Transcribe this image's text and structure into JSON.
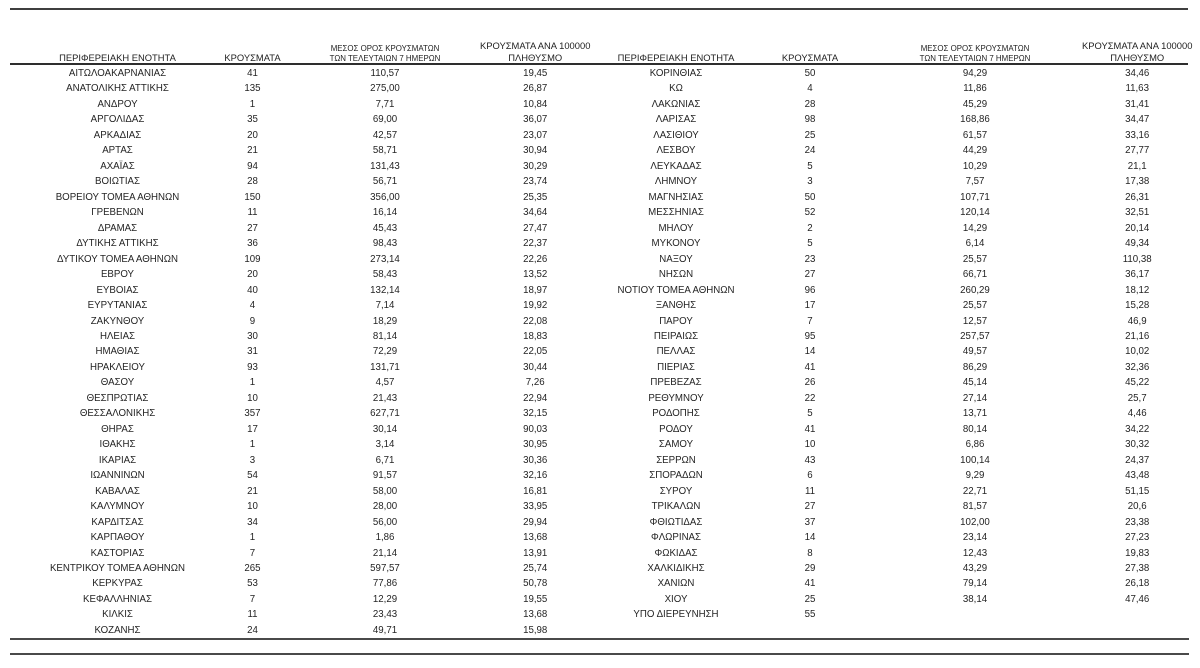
{
  "document": {
    "headers": {
      "region": "ΠΕΡΙΦΕΡΕΙΑΚΗ ΕΝΟΤΗΤΑ",
      "cases": "ΚΡΟΥΣΜΑΤΑ",
      "avg7_line1": "ΜΕΣΟΣ ΟΡΟΣ ΚΡΟΥΣΜΑΤΩΝ",
      "avg7_line2": "ΤΩΝ ΤΕΛΕΥΤΑΙΩΝ 7 ΗΜΕΡΩΝ",
      "per100k_line1": "ΚΡΟΥΣΜΑΤΑ ΑΝΑ 100000",
      "per100k_line2": "ΠΛΗΘΥΣΜΟ"
    },
    "left_table_rows": [
      [
        "ΑΙΤΩΛΟΑΚΑΡΝΑΝΙΑΣ",
        "41",
        "110,57",
        "19,45"
      ],
      [
        "ΑΝΑΤΟΛΙΚΗΣ ΑΤΤΙΚΗΣ",
        "135",
        "275,00",
        "26,87"
      ],
      [
        "ΑΝΔΡΟΥ",
        "1",
        "7,71",
        "10,84"
      ],
      [
        "ΑΡΓΟΛΙΔΑΣ",
        "35",
        "69,00",
        "36,07"
      ],
      [
        "ΑΡΚΑΔΙΑΣ",
        "20",
        "42,57",
        "23,07"
      ],
      [
        "ΑΡΤΑΣ",
        "21",
        "58,71",
        "30,94"
      ],
      [
        "ΑΧΑΪΑΣ",
        "94",
        "131,43",
        "30,29"
      ],
      [
        "ΒΟΙΩΤΙΑΣ",
        "28",
        "56,71",
        "23,74"
      ],
      [
        "ΒΟΡΕΙΟΥ ΤΟΜΕΑ ΑΘΗΝΩΝ",
        "150",
        "356,00",
        "25,35"
      ],
      [
        "ΓΡΕΒΕΝΩΝ",
        "11",
        "16,14",
        "34,64"
      ],
      [
        "ΔΡΑΜΑΣ",
        "27",
        "45,43",
        "27,47"
      ],
      [
        "ΔΥΤΙΚΗΣ ΑΤΤΙΚΗΣ",
        "36",
        "98,43",
        "22,37"
      ],
      [
        "ΔΥΤΙΚΟΥ ΤΟΜΕΑ ΑΘΗΝΩΝ",
        "109",
        "273,14",
        "22,26"
      ],
      [
        "ΕΒΡΟΥ",
        "20",
        "58,43",
        "13,52"
      ],
      [
        "ΕΥΒΟΙΑΣ",
        "40",
        "132,14",
        "18,97"
      ],
      [
        "ΕΥΡΥΤΑΝΙΑΣ",
        "4",
        "7,14",
        "19,92"
      ],
      [
        "ΖΑΚΥΝΘΟΥ",
        "9",
        "18,29",
        "22,08"
      ],
      [
        "ΗΛΕΙΑΣ",
        "30",
        "81,14",
        "18,83"
      ],
      [
        "ΗΜΑΘΙΑΣ",
        "31",
        "72,29",
        "22,05"
      ],
      [
        "ΗΡΑΚΛΕΙΟΥ",
        "93",
        "131,71",
        "30,44"
      ],
      [
        "ΘΑΣΟΥ",
        "1",
        "4,57",
        "7,26"
      ],
      [
        "ΘΕΣΠΡΩΤΙΑΣ",
        "10",
        "21,43",
        "22,94"
      ],
      [
        "ΘΕΣΣΑΛΟΝΙΚΗΣ",
        "357",
        "627,71",
        "32,15"
      ],
      [
        "ΘΗΡΑΣ",
        "17",
        "30,14",
        "90,03"
      ],
      [
        "ΙΘΑΚΗΣ",
        "1",
        "3,14",
        "30,95"
      ],
      [
        "ΙΚΑΡΙΑΣ",
        "3",
        "6,71",
        "30,36"
      ],
      [
        "ΙΩΑΝΝΙΝΩΝ",
        "54",
        "91,57",
        "32,16"
      ],
      [
        "ΚΑΒΑΛΑΣ",
        "21",
        "58,00",
        "16,81"
      ],
      [
        "ΚΑΛΥΜΝΟΥ",
        "10",
        "28,00",
        "33,95"
      ],
      [
        "ΚΑΡΔΙΤΣΑΣ",
        "34",
        "56,00",
        "29,94"
      ],
      [
        "ΚΑΡΠΑΘΟΥ",
        "1",
        "1,86",
        "13,68"
      ],
      [
        "ΚΑΣΤΟΡΙΑΣ",
        "7",
        "21,14",
        "13,91"
      ],
      [
        "ΚΕΝΤΡΙΚΟΥ ΤΟΜΕΑ ΑΘΗΝΩΝ",
        "265",
        "597,57",
        "25,74"
      ],
      [
        "ΚΕΡΚΥΡΑΣ",
        "53",
        "77,86",
        "50,78"
      ],
      [
        "ΚΕΦΑΛΛΗΝΙΑΣ",
        "7",
        "12,29",
        "19,55"
      ],
      [
        "ΚΙΛΚΙΣ",
        "11",
        "23,43",
        "13,68"
      ],
      [
        "ΚΟΖΑΝΗΣ",
        "24",
        "49,71",
        "15,98"
      ]
    ],
    "right_table_rows": [
      [
        "ΚΟΡΙΝΘΙΑΣ",
        "50",
        "94,29",
        "34,46"
      ],
      [
        "ΚΩ",
        "4",
        "11,86",
        "11,63"
      ],
      [
        "ΛΑΚΩΝΙΑΣ",
        "28",
        "45,29",
        "31,41"
      ],
      [
        "ΛΑΡΙΣΑΣ",
        "98",
        "168,86",
        "34,47"
      ],
      [
        "ΛΑΣΙΘΙΟΥ",
        "25",
        "61,57",
        "33,16"
      ],
      [
        "ΛΕΣΒΟΥ",
        "24",
        "44,29",
        "27,77"
      ],
      [
        "ΛΕΥΚΑΔΑΣ",
        "5",
        "10,29",
        "21,1"
      ],
      [
        "ΛΗΜΝΟΥ",
        "3",
        "7,57",
        "17,38"
      ],
      [
        "ΜΑΓΝΗΣΙΑΣ",
        "50",
        "107,71",
        "26,31"
      ],
      [
        "ΜΕΣΣΗΝΙΑΣ",
        "52",
        "120,14",
        "32,51"
      ],
      [
        "ΜΗΛΟΥ",
        "2",
        "14,29",
        "20,14"
      ],
      [
        "ΜΥΚΟΝΟΥ",
        "5",
        "6,14",
        "49,34"
      ],
      [
        "ΝΑΞΟΥ",
        "23",
        "25,57",
        "110,38"
      ],
      [
        "ΝΗΣΩΝ",
        "27",
        "66,71",
        "36,17"
      ],
      [
        "ΝΟΤΙΟΥ ΤΟΜΕΑ ΑΘΗΝΩΝ",
        "96",
        "260,29",
        "18,12"
      ],
      [
        "ΞΑΝΘΗΣ",
        "17",
        "25,57",
        "15,28"
      ],
      [
        "ΠΑΡΟΥ",
        "7",
        "12,57",
        "46,9"
      ],
      [
        "ΠΕΙΡΑΙΩΣ",
        "95",
        "257,57",
        "21,16"
      ],
      [
        "ΠΕΛΛΑΣ",
        "14",
        "49,57",
        "10,02"
      ],
      [
        "ΠΙΕΡΙΑΣ",
        "41",
        "86,29",
        "32,36"
      ],
      [
        "ΠΡΕΒΕΖΑΣ",
        "26",
        "45,14",
        "45,22"
      ],
      [
        "ΡΕΘΥΜΝΟΥ",
        "22",
        "27,14",
        "25,7"
      ],
      [
        "ΡΟΔΟΠΗΣ",
        "5",
        "13,71",
        "4,46"
      ],
      [
        "ΡΟΔΟΥ",
        "41",
        "80,14",
        "34,22"
      ],
      [
        "ΣΑΜΟΥ",
        "10",
        "6,86",
        "30,32"
      ],
      [
        "ΣΕΡΡΩΝ",
        "43",
        "100,14",
        "24,37"
      ],
      [
        "ΣΠΟΡΑΔΩΝ",
        "6",
        "9,29",
        "43,48"
      ],
      [
        "ΣΥΡΟΥ",
        "11",
        "22,71",
        "51,15"
      ],
      [
        "ΤΡΙΚΑΛΩΝ",
        "27",
        "81,57",
        "20,6"
      ],
      [
        "ΦΘΙΩΤΙΔΑΣ",
        "37",
        "102,00",
        "23,38"
      ],
      [
        "ΦΛΩΡΙΝΑΣ",
        "14",
        "23,14",
        "27,23"
      ],
      [
        "ΦΩΚΙΔΑΣ",
        "8",
        "12,43",
        "19,83"
      ],
      [
        "ΧΑΛΚΙΔΙΚΗΣ",
        "29",
        "43,29",
        "27,38"
      ],
      [
        "ΧΑΝΙΩΝ",
        "41",
        "79,14",
        "26,18"
      ],
      [
        "ΧΙΟΥ",
        "25",
        "38,14",
        "47,46"
      ],
      [
        "ΥΠΟ ΔΙΕΡΕΥΝΗΣΗ",
        "55",
        "",
        ""
      ]
    ]
  }
}
